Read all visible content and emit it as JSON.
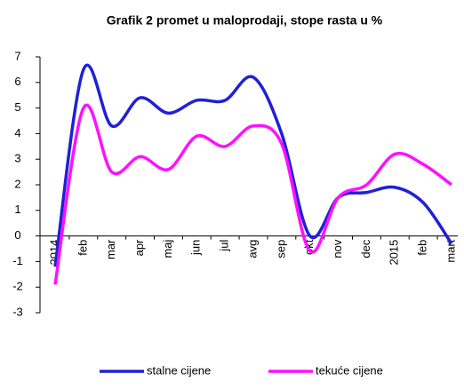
{
  "chart_data": {
    "type": "line",
    "title": "Grafik 2 promet u maloprodaji, stope rasta u %",
    "categories": [
      "2014",
      "feb",
      "mar",
      "apr",
      "maj",
      "jun",
      "jul",
      "avg",
      "sep",
      "okt",
      "nov",
      "dec",
      "2015",
      "feb",
      "mart"
    ],
    "series": [
      {
        "name": "stalne cijene",
        "color": "#2020d8",
        "values": [
          -1.2,
          6.5,
          4.3,
          5.4,
          4.8,
          5.3,
          5.3,
          6.2,
          4.0,
          0.0,
          1.5,
          1.7,
          1.9,
          1.3,
          -0.3
        ]
      },
      {
        "name": "tekuće cijene",
        "color": "#ff10ff",
        "values": [
          -1.9,
          5.0,
          2.5,
          3.1,
          2.6,
          3.9,
          3.5,
          4.3,
          3.6,
          -0.6,
          1.5,
          2.0,
          3.2,
          2.8,
          2.0
        ]
      }
    ],
    "ylim": [
      -3,
      7
    ],
    "yticks": [
      -3,
      -2,
      -1,
      0,
      1,
      2,
      3,
      4,
      5,
      6,
      7
    ],
    "smooth": true
  }
}
